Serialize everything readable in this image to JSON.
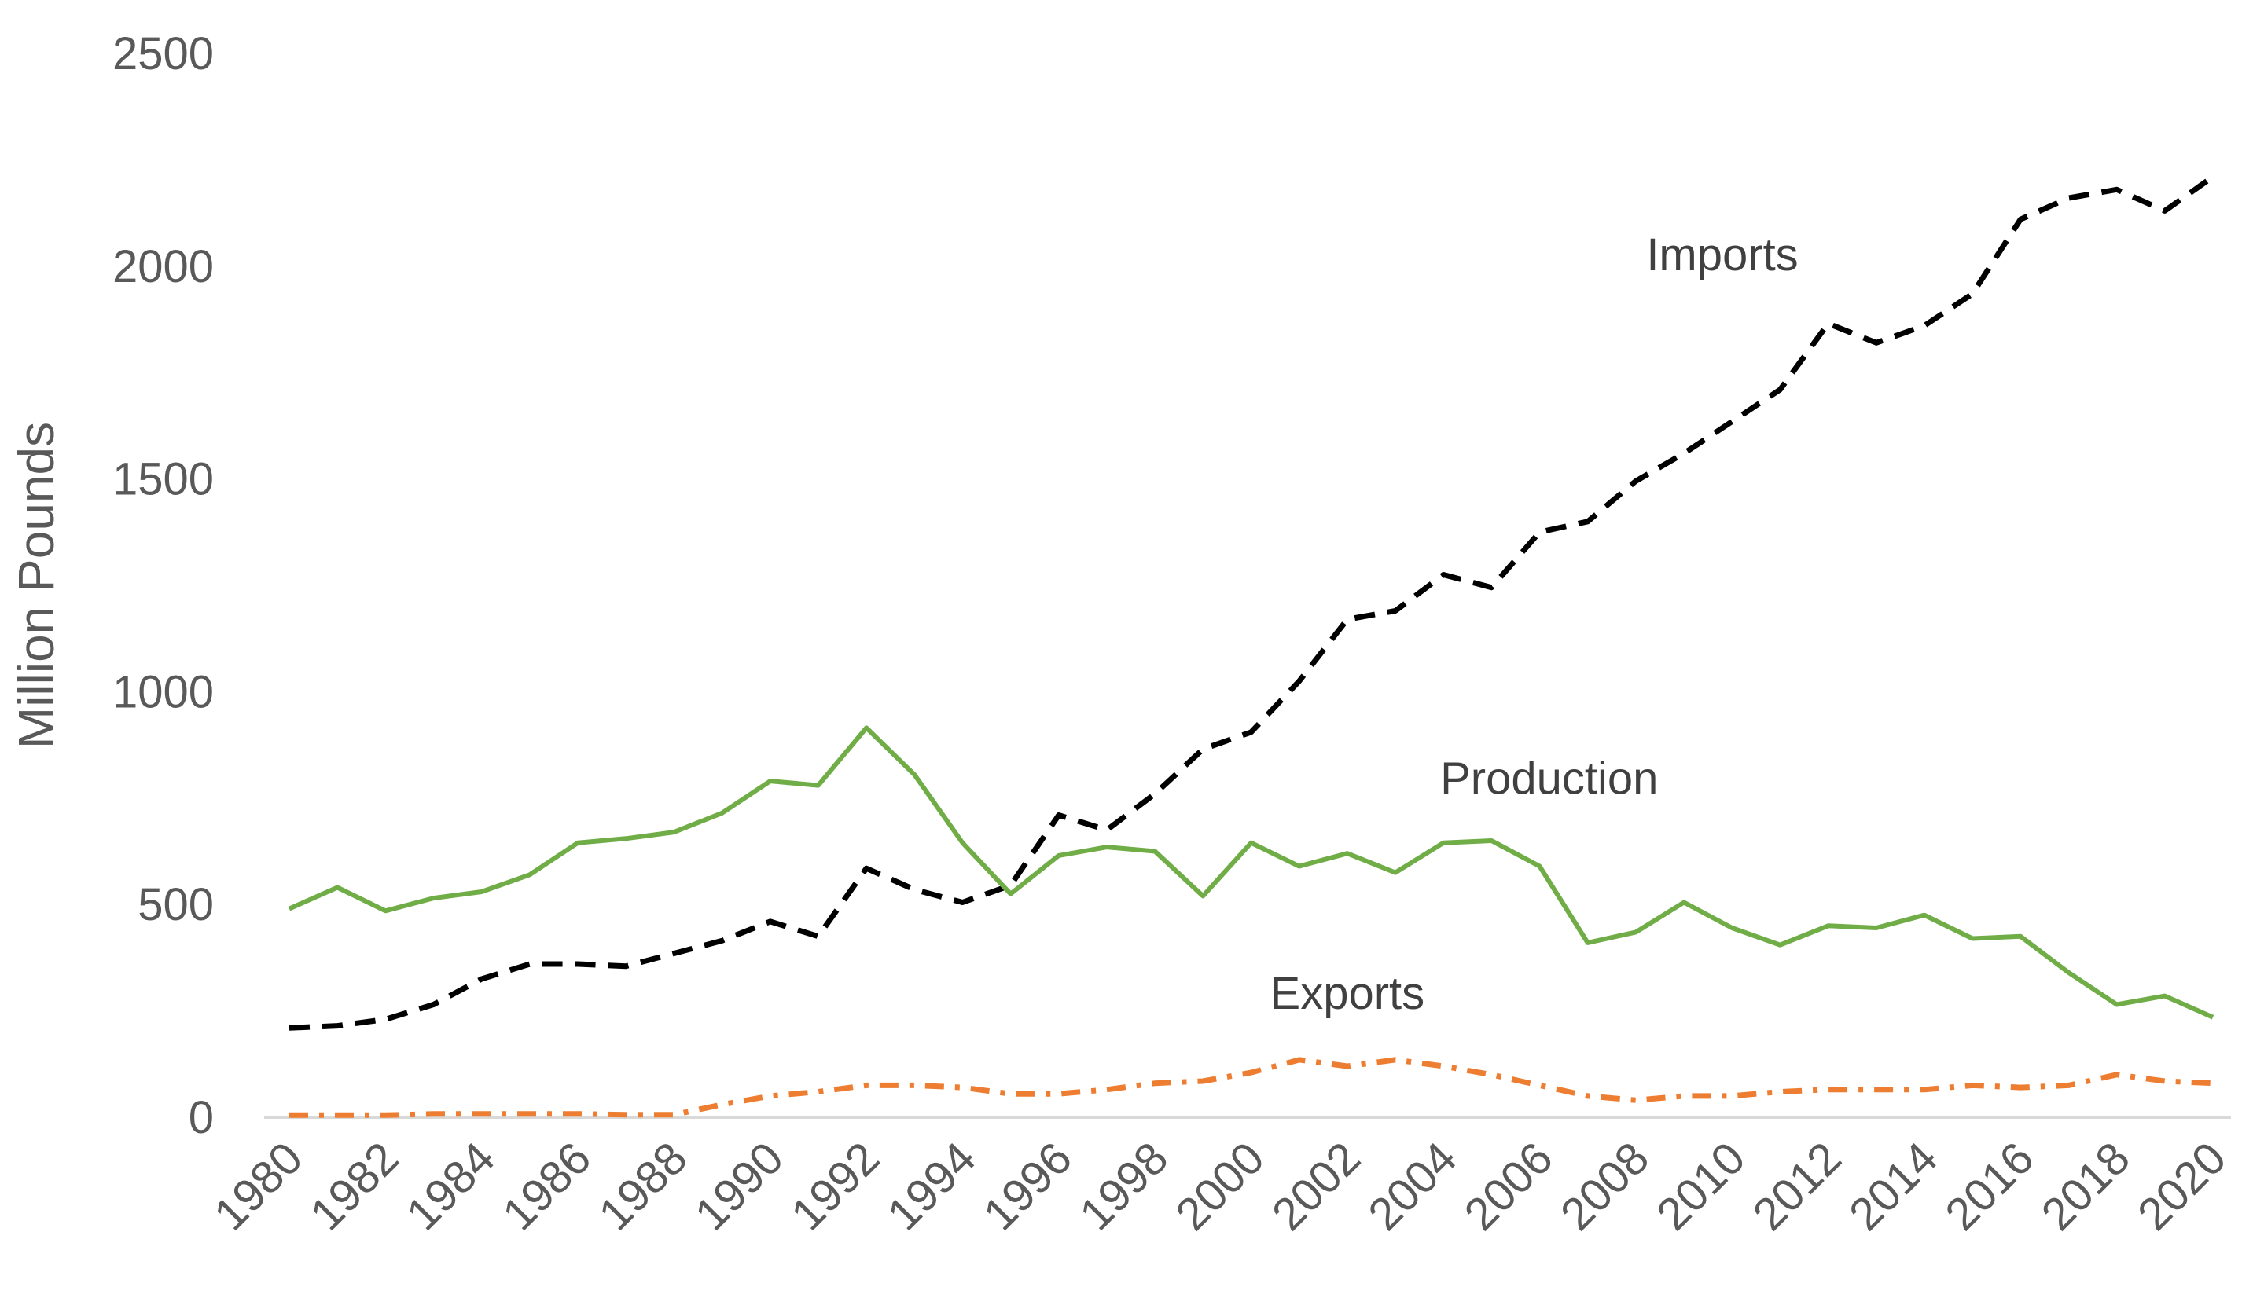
{
  "chart_data": {
    "type": "line",
    "title": "",
    "xlabel": "",
    "ylabel": "Million Pounds",
    "ylim": [
      0,
      2500
    ],
    "yticks": [
      0,
      500,
      1000,
      1500,
      2000,
      2500
    ],
    "x_tick_labels": [
      "1980",
      "1982",
      "1984",
      "1986",
      "1988",
      "1990",
      "1992",
      "1994",
      "1996",
      "1998",
      "2000",
      "2002",
      "2004",
      "2006",
      "2008",
      "2010",
      "2012",
      "2014",
      "2016",
      "2018",
      "2020"
    ],
    "x": [
      1980,
      1981,
      1982,
      1983,
      1984,
      1985,
      1986,
      1987,
      1988,
      1989,
      1990,
      1991,
      1992,
      1993,
      1994,
      1995,
      1996,
      1997,
      1998,
      1999,
      2000,
      2001,
      2002,
      2003,
      2004,
      2005,
      2006,
      2007,
      2008,
      2009,
      2010,
      2011,
      2012,
      2013,
      2014,
      2015,
      2016,
      2017,
      2018,
      2019,
      2020
    ],
    "grid": false,
    "legend": "none",
    "series": [
      {
        "name": "Imports",
        "label": "Imports",
        "color": "#000000",
        "style": "dashed",
        "values": [
          210,
          215,
          230,
          265,
          325,
          360,
          360,
          355,
          385,
          415,
          460,
          425,
          585,
          535,
          505,
          545,
          710,
          675,
          760,
          865,
          905,
          1025,
          1170,
          1190,
          1275,
          1245,
          1375,
          1400,
          1495,
          1560,
          1635,
          1710,
          1865,
          1820,
          1860,
          1935,
          2110,
          2160,
          2180,
          2130,
          2210
        ]
      },
      {
        "name": "Production",
        "label": "Production",
        "color": "#70ad47",
        "style": "solid",
        "values": [
          490,
          540,
          485,
          515,
          530,
          570,
          645,
          655,
          670,
          715,
          790,
          780,
          915,
          805,
          645,
          525,
          615,
          635,
          625,
          520,
          645,
          590,
          620,
          575,
          645,
          650,
          590,
          410,
          435,
          505,
          445,
          405,
          450,
          445,
          475,
          420,
          425,
          340,
          265,
          285,
          235
        ]
      },
      {
        "name": "Exports",
        "label": "Exports",
        "color": "#ed7d31",
        "style": "dash-dot",
        "values": [
          5,
          5,
          5,
          8,
          8,
          8,
          8,
          6,
          6,
          30,
          50,
          60,
          75,
          75,
          70,
          55,
          55,
          65,
          80,
          85,
          105,
          135,
          120,
          135,
          120,
          100,
          75,
          50,
          40,
          50,
          50,
          60,
          65,
          65,
          65,
          75,
          70,
          75,
          100,
          85,
          80
        ]
      }
    ]
  }
}
